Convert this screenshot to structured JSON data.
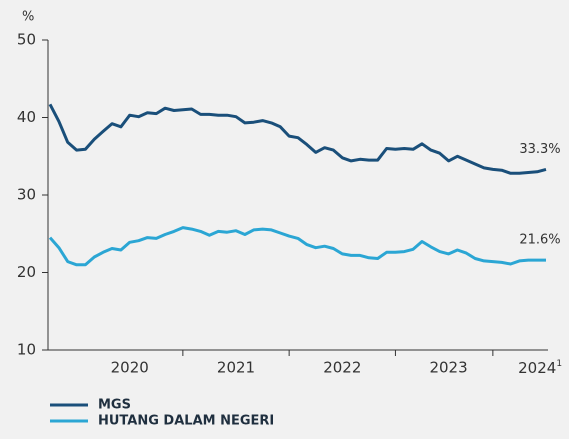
{
  "chart_data": {
    "type": "line",
    "y_unit_label": "%",
    "categories": [
      null,
      null,
      null,
      null,
      null,
      null,
      null,
      null,
      null,
      "2020",
      null,
      null,
      null,
      null,
      null,
      null,
      null,
      null,
      null,
      null,
      null,
      "2021",
      null,
      null,
      null,
      null,
      null,
      null,
      null,
      null,
      null,
      null,
      null,
      "2022",
      null,
      null,
      null,
      null,
      null,
      null,
      null,
      null,
      null,
      null,
      null,
      "2023",
      null,
      null,
      null,
      null,
      null,
      null,
      null,
      null,
      null,
      "2024",
      null
    ],
    "category_footnote_marker": "1",
    "series": [
      {
        "name": "MGS",
        "color": "#1a4f7a",
        "values": [
          41.7,
          39.5,
          36.8,
          35.8,
          35.9,
          37.2,
          38.2,
          39.2,
          38.8,
          40.3,
          40.1,
          40.6,
          40.5,
          41.2,
          40.9,
          41.0,
          41.1,
          40.4,
          40.4,
          40.3,
          40.3,
          40.1,
          39.3,
          39.4,
          39.6,
          39.3,
          38.8,
          37.6,
          37.4,
          36.5,
          35.5,
          36.1,
          35.8,
          34.8,
          34.4,
          34.6,
          34.5,
          34.5,
          36.0,
          35.9,
          36.0,
          35.9,
          36.6,
          35.8,
          35.4,
          34.4,
          35.0,
          34.5,
          34.0,
          33.5,
          33.3,
          33.2,
          32.8,
          32.8,
          32.9,
          33.0,
          33.3
        ],
        "value_labels": [
          null,
          null,
          null,
          null,
          null,
          null,
          null,
          null,
          null,
          null,
          null,
          null,
          null,
          null,
          null,
          null,
          null,
          null,
          null,
          null,
          null,
          null,
          null,
          null,
          null,
          null,
          null,
          null,
          null,
          null,
          null,
          null,
          null,
          null,
          null,
          null,
          null,
          null,
          null,
          null,
          null,
          null,
          null,
          null,
          null,
          null,
          null,
          null,
          null,
          null,
          null,
          null,
          null,
          null,
          null,
          null,
          "33.3%"
        ]
      },
      {
        "name": "HUTANG DALAM NEGERI",
        "color": "#2ba6d4",
        "values": [
          24.5,
          23.2,
          21.4,
          21.0,
          21.0,
          22.0,
          22.6,
          23.1,
          22.9,
          23.9,
          24.1,
          24.5,
          24.4,
          24.9,
          25.3,
          25.8,
          25.6,
          25.3,
          24.8,
          25.3,
          25.2,
          25.4,
          24.9,
          25.5,
          25.6,
          25.5,
          25.1,
          24.7,
          24.4,
          23.6,
          23.2,
          23.4,
          23.1,
          22.4,
          22.2,
          22.2,
          21.9,
          21.8,
          22.6,
          22.6,
          22.7,
          23.0,
          24.0,
          23.3,
          22.7,
          22.4,
          22.9,
          22.5,
          21.8,
          21.5,
          21.4,
          21.3,
          21.1,
          21.5,
          21.6,
          21.6,
          21.6
        ],
        "value_labels": [
          null,
          null,
          null,
          null,
          null,
          null,
          null,
          null,
          null,
          null,
          null,
          null,
          null,
          null,
          null,
          null,
          null,
          null,
          null,
          null,
          null,
          null,
          null,
          null,
          null,
          null,
          null,
          null,
          null,
          null,
          null,
          null,
          null,
          null,
          null,
          null,
          null,
          null,
          null,
          null,
          null,
          null,
          null,
          null,
          null,
          null,
          null,
          null,
          null,
          null,
          null,
          null,
          null,
          null,
          null,
          null,
          "21.6%"
        ]
      }
    ],
    "ylim": [
      10,
      50
    ],
    "yticks": [
      10,
      20,
      30,
      40,
      50
    ],
    "grid": false
  }
}
